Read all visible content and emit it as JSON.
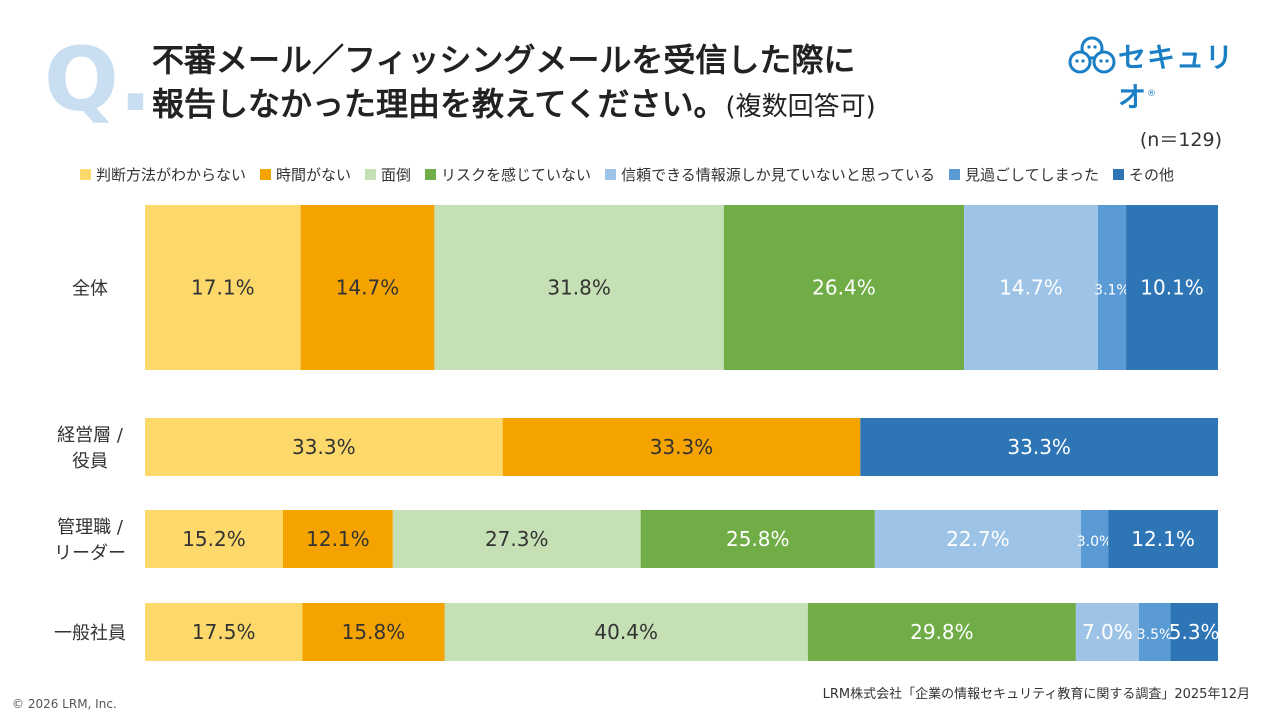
{
  "question_mark": "Q.",
  "title_line1": "不審メール／フィッシングメールを受信した際に",
  "title_line2": "報告しなかった理由を教えてください。",
  "title_suffix": "(複数回答可)",
  "logo_text": "セキュリオ",
  "logo_mark": "®",
  "sample_size": "(n＝129)",
  "source": "LRM株式会社「企業の情報セキュリティ教育に関する調査」2025年12月",
  "copyright": "© 2026 LRM, Inc.",
  "chart_data": {
    "type": "bar",
    "orientation": "horizontal",
    "stacked": "percent",
    "categories": [
      "全体",
      "経営層 / 役員",
      "管理職 / リーダー",
      "一般社員"
    ],
    "category_lines": [
      [
        "全体"
      ],
      [
        "経営層 /",
        "役員"
      ],
      [
        "管理職 /",
        "リーダー"
      ],
      [
        "一般社員"
      ]
    ],
    "legend_position": "top",
    "grid": false,
    "series": [
      {
        "name": "判断方法がわからない",
        "color": "#fdd96b",
        "label_color": "#333333",
        "values": [
          17.1,
          33.3,
          15.2,
          17.5
        ]
      },
      {
        "name": "時間がない",
        "color": "#f4a300",
        "label_color": "#333333",
        "values": [
          14.7,
          33.3,
          12.1,
          15.8
        ]
      },
      {
        "name": "面倒",
        "color": "#c5e0b4",
        "label_color": "#333333",
        "values": [
          31.8,
          0,
          27.3,
          40.4
        ]
      },
      {
        "name": "リスクを感じていない",
        "color": "#70ad47",
        "label_color": "#ffffff",
        "values": [
          26.4,
          0,
          25.8,
          29.8
        ]
      },
      {
        "name": "信頼できる情報源しか見ていないと思っている",
        "color": "#9dc3e6",
        "label_color": "#ffffff",
        "values": [
          14.7,
          0,
          22.7,
          7.0
        ]
      },
      {
        "name": "見過ごしてしまった",
        "color": "#5b9bd5",
        "label_color": "#ffffff",
        "values": [
          3.1,
          0,
          3.0,
          3.5
        ]
      },
      {
        "name": "その他",
        "color": "#2e75b6",
        "label_color": "#ffffff",
        "values": [
          10.1,
          33.3,
          12.1,
          5.3
        ]
      }
    ]
  }
}
